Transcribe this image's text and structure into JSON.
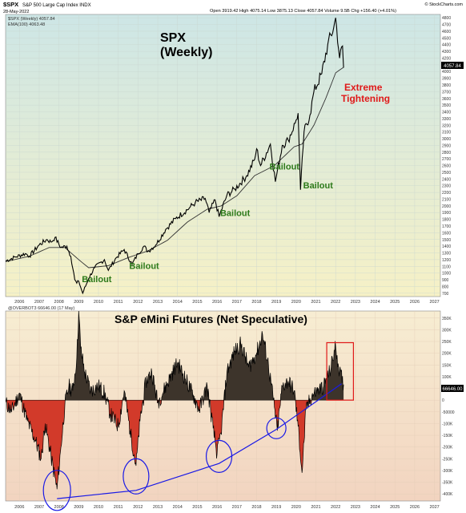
{
  "header": {
    "symbol": "$SPX",
    "index_name": "S&P 500 Large Cap Index  INDX",
    "date": "28-May-2022",
    "ohlc": "Open 3919.42  High 4075.14  Low 3875.13  Close 4057.84  Volume 9.5B  Chg +156.40 (+4.01%)",
    "source": "© StockCharts.com"
  },
  "colors": {
    "price_bg_top": "#cde6e6",
    "price_bg_bottom": "#f6f1c6",
    "cot_bg_top": "#f7edd2",
    "cot_bg_bottom": "#f2d4c0",
    "positive_fill": "#3d342b",
    "negative_fill": "#d23a2a",
    "label_green": "#2d7a1a",
    "label_red": "#e01919",
    "trend_blue": "#1a1ae6"
  },
  "chart_data": [
    {
      "type": "line",
      "title": "SPX\n(Weekly)",
      "legend": [
        "$SPX (Weekly) 4057.84",
        "EMA(100) 4063.48"
      ],
      "current_value_label": "4057.84",
      "x_ticks": [
        "2006",
        "2007",
        "2008",
        "2009",
        "2010",
        "2011",
        "2012",
        "2013",
        "2014",
        "2015",
        "2016",
        "2017",
        "2018",
        "2019",
        "2020",
        "2021",
        "2022",
        "2023",
        "2024",
        "2025",
        "2026",
        "2027"
      ],
      "y_ticks": [
        700,
        800,
        900,
        1000,
        1100,
        1200,
        1300,
        1400,
        1500,
        1600,
        1700,
        1800,
        1900,
        2000,
        2100,
        2200,
        2300,
        2400,
        2500,
        2600,
        2700,
        2800,
        2900,
        3000,
        3100,
        3200,
        3300,
        3400,
        3500,
        3600,
        3700,
        3800,
        3900,
        4000,
        4100,
        4200,
        4300,
        4400,
        4500,
        4600,
        4700,
        4800
      ],
      "ylim": [
        650,
        4850
      ],
      "series": [
        {
          "x": [
            2005.3,
            2005.8,
            2006.3,
            2006.5,
            2007.0,
            2007.4,
            2007.6,
            2007.8,
            2008.1,
            2008.4,
            2008.6,
            2008.8,
            2008.9,
            2009.0,
            2009.2,
            2009.5,
            2009.8,
            2010.3,
            2010.5,
            2010.9,
            2011.3,
            2011.7,
            2012.0,
            2012.3,
            2012.5,
            2012.9,
            2013.4,
            2013.9,
            2014.6,
            2014.9,
            2015.4,
            2015.6,
            2015.9,
            2016.1,
            2016.5,
            2016.9,
            2017.5,
            2017.9,
            2018.0,
            2018.2,
            2018.7,
            2018.95,
            2019.3,
            2019.6,
            2019.95,
            2020.1,
            2020.22,
            2020.4,
            2020.7,
            2020.9,
            2021.3,
            2021.6,
            2021.9,
            2022.0,
            2022.2,
            2022.35,
            2022.4
          ],
          "values": [
            1180,
            1240,
            1290,
            1250,
            1420,
            1500,
            1460,
            1530,
            1380,
            1400,
            1250,
            900,
            850,
            880,
            700,
            920,
            1080,
            1200,
            1040,
            1230,
            1350,
            1130,
            1290,
            1400,
            1320,
            1420,
            1650,
            1810,
            1970,
            2050,
            2110,
            1900,
            2090,
            1840,
            2160,
            2250,
            2450,
            2690,
            2850,
            2600,
            2920,
            2360,
            2900,
            2980,
            3230,
            3380,
            2240,
            3100,
            3350,
            3700,
            3970,
            4400,
            4650,
            4800,
            4200,
            4380,
            4058
          ]
        },
        {
          "name": "EMA(100)",
          "x": [
            2005.3,
            2006.5,
            2007.5,
            2008.3,
            2009.0,
            2009.5,
            2010.5,
            2011.5,
            2012.5,
            2013.5,
            2014.5,
            2015.5,
            2016.2,
            2017.0,
            2017.9,
            2018.9,
            2019.9,
            2020.3,
            2020.9,
            2021.5,
            2022.0,
            2022.4
          ],
          "values": [
            1170,
            1250,
            1380,
            1380,
            1200,
            1080,
            1110,
            1230,
            1330,
            1490,
            1760,
            1950,
            2000,
            2150,
            2450,
            2600,
            2880,
            2920,
            3200,
            3600,
            3980,
            4063
          ]
        }
      ]
    },
    {
      "type": "area",
      "title": "S&P eMini Futures (Net Speculative)",
      "legend": [
        "@OVERBOT3 66646.00 (17 May)"
      ],
      "current_value_label": "66646.00",
      "x_ticks": [
        "2006",
        "2007",
        "2008",
        "2009",
        "2010",
        "2011",
        "2012",
        "2013",
        "2014",
        "2015",
        "2016",
        "2017",
        "2018",
        "2019",
        "2020",
        "2021",
        "2022",
        "2023",
        "2024",
        "2025",
        "2026",
        "2027"
      ],
      "y_ticks": [
        "350K",
        "300K",
        "250K",
        "200K",
        "150K",
        "100K",
        "50K",
        "0",
        "-50000",
        "-100K",
        "-150K",
        "-200K",
        "-250K",
        "-300K",
        "-350K",
        "-400K"
      ],
      "ylim": [
        -430000,
        380000
      ],
      "series": [
        {
          "x": [
            2005.3,
            2005.6,
            2006.0,
            2006.4,
            2006.8,
            2007.1,
            2007.3,
            2007.6,
            2007.9,
            2008.1,
            2008.3,
            2008.5,
            2008.7,
            2008.9,
            2009.0,
            2009.1,
            2009.3,
            2009.6,
            2010.0,
            2010.3,
            2010.6,
            2011.0,
            2011.3,
            2011.6,
            2011.9,
            2012.1,
            2012.4,
            2012.7,
            2013.0,
            2013.3,
            2013.7,
            2014.0,
            2014.4,
            2014.8,
            2015.1,
            2015.5,
            2015.8,
            2016.0,
            2016.2,
            2016.5,
            2016.9,
            2017.2,
            2017.6,
            2018.0,
            2018.3,
            2018.6,
            2018.9,
            2019.05,
            2019.3,
            2019.6,
            2019.9,
            2020.1,
            2020.3,
            2020.5,
            2020.8,
            2021.1,
            2021.4,
            2021.7,
            2022.0,
            2022.2,
            2022.4
          ],
          "values": [
            -10000,
            -50000,
            30000,
            -90000,
            -170000,
            -250000,
            -100000,
            -240000,
            -380000,
            -200000,
            -20000,
            60000,
            40000,
            180000,
            380000,
            220000,
            120000,
            40000,
            60000,
            30000,
            -60000,
            -110000,
            40000,
            -130000,
            -280000,
            -90000,
            80000,
            120000,
            -10000,
            40000,
            110000,
            160000,
            90000,
            20000,
            -40000,
            60000,
            -120000,
            -230000,
            -140000,
            120000,
            210000,
            240000,
            140000,
            200000,
            280000,
            150000,
            -30000,
            -130000,
            60000,
            80000,
            40000,
            -110000,
            -310000,
            -40000,
            20000,
            40000,
            60000,
            120000,
            230000,
            120000,
            66646
          ]
        }
      ],
      "annotations": {
        "circled_lows": [
          2007.9,
          2011.9,
          2016.1,
          2019.0
        ],
        "trend_line": {
          "x": [
            2007.9,
            2011.9,
            2016.1,
            2019.0,
            2022.3
          ],
          "values": [
            -420000,
            -385000,
            -270000,
            -125000,
            70000
          ]
        },
        "highlight_box": {
          "x": [
            2021.55,
            2022.9
          ],
          "values": [
            0,
            245000
          ]
        }
      }
    }
  ],
  "annotations": {
    "bailout_label": "Bailout",
    "bailouts": [
      2009.4,
      2011.8,
      2016.4,
      2018.9,
      2020.6
    ],
    "extreme": "Extreme\nTightening"
  }
}
